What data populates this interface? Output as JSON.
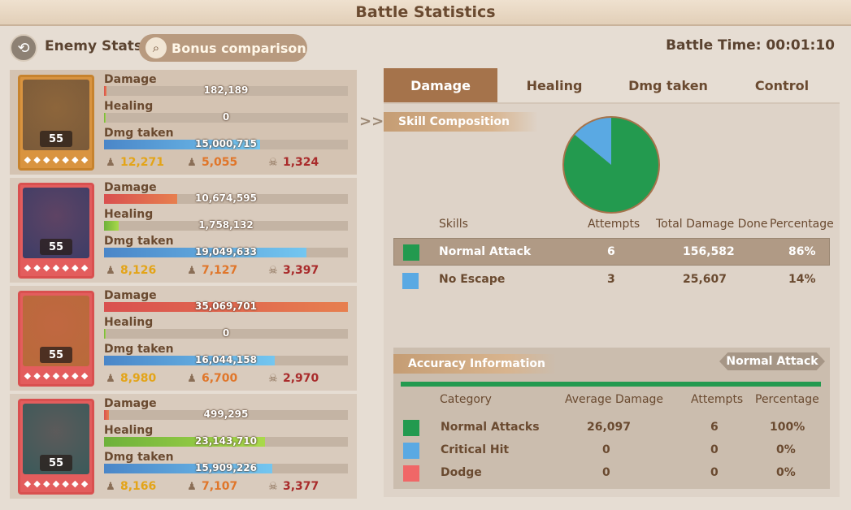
{
  "title": "Battle Statistics",
  "topbar": {
    "enemy_label": "Enemy Stats",
    "bonus_label": "Bonus comparison",
    "battle_time": "Battle Time: 00:01:10"
  },
  "heroes": [
    {
      "level": "55",
      "damage_label": "Damage",
      "damage": "182,189",
      "damage_frac": 0.01,
      "healing_label": "Healing",
      "healing": "0",
      "healing_frac": 0.005,
      "taken_label": "Dmg taken",
      "taken": "15,000,715",
      "taken_frac": 0.64,
      "c1": "12,271",
      "c2": "5,055",
      "c3": "1,324"
    },
    {
      "level": "55",
      "damage_label": "Damage",
      "damage": "10,674,595",
      "damage_frac": 0.3,
      "healing_label": "Healing",
      "healing": "1,758,132",
      "healing_frac": 0.06,
      "taken_label": "Dmg taken",
      "taken": "19,049,633",
      "taken_frac": 0.83,
      "c1": "8,126",
      "c2": "7,127",
      "c3": "3,397"
    },
    {
      "level": "55",
      "damage_label": "Damage",
      "damage": "35,069,701",
      "damage_frac": 1.0,
      "healing_label": "Healing",
      "healing": "0",
      "healing_frac": 0.005,
      "taken_label": "Dmg taken",
      "taken": "16,044,158",
      "taken_frac": 0.7,
      "c1": "8,980",
      "c2": "6,700",
      "c3": "2,970"
    },
    {
      "level": "55",
      "damage_label": "Damage",
      "damage": "499,295",
      "damage_frac": 0.02,
      "healing_label": "Healing",
      "healing": "23,143,710",
      "healing_frac": 0.66,
      "taken_label": "Dmg taken",
      "taken": "15,909,226",
      "taken_frac": 0.69,
      "c1": "8,166",
      "c2": "7,107",
      "c3": "3,377"
    }
  ],
  "tabs": [
    "Damage",
    "Healing",
    "Dmg taken",
    "Control"
  ],
  "skill_section": "Skill Composition",
  "skills_headers": {
    "skills": "Skills",
    "attempts": "Attempts",
    "total": "Total Damage Done",
    "pct": "Percentage"
  },
  "skills": [
    {
      "name": "Normal Attack",
      "attempts": "6",
      "total": "156,582",
      "pct": "86%",
      "color": "#239a4f"
    },
    {
      "name": "No Escape",
      "attempts": "3",
      "total": "25,607",
      "pct": "14%",
      "color": "#5aa9e3"
    }
  ],
  "chart_data": {
    "type": "pie",
    "categories": [
      "Normal Attack",
      "No Escape"
    ],
    "values": [
      86,
      14
    ],
    "colors": [
      "#239a4f",
      "#5aa9e3"
    ]
  },
  "accuracy": {
    "title": "Accuracy Information",
    "tag": "Normal Attack",
    "headers": {
      "category": "Category",
      "avg": "Average Damage",
      "attempts": "Attempts",
      "pct": "Percentage"
    },
    "rows": [
      {
        "name": "Normal Attacks",
        "avg": "26,097",
        "attempts": "6",
        "pct": "100%",
        "color": "#239a4f"
      },
      {
        "name": "Critical Hit",
        "avg": "0",
        "attempts": "0",
        "pct": "0%",
        "color": "#5aa9e3"
      },
      {
        "name": "Dodge",
        "avg": "0",
        "attempts": "0",
        "pct": "0%",
        "color": "#f06767"
      }
    ]
  }
}
